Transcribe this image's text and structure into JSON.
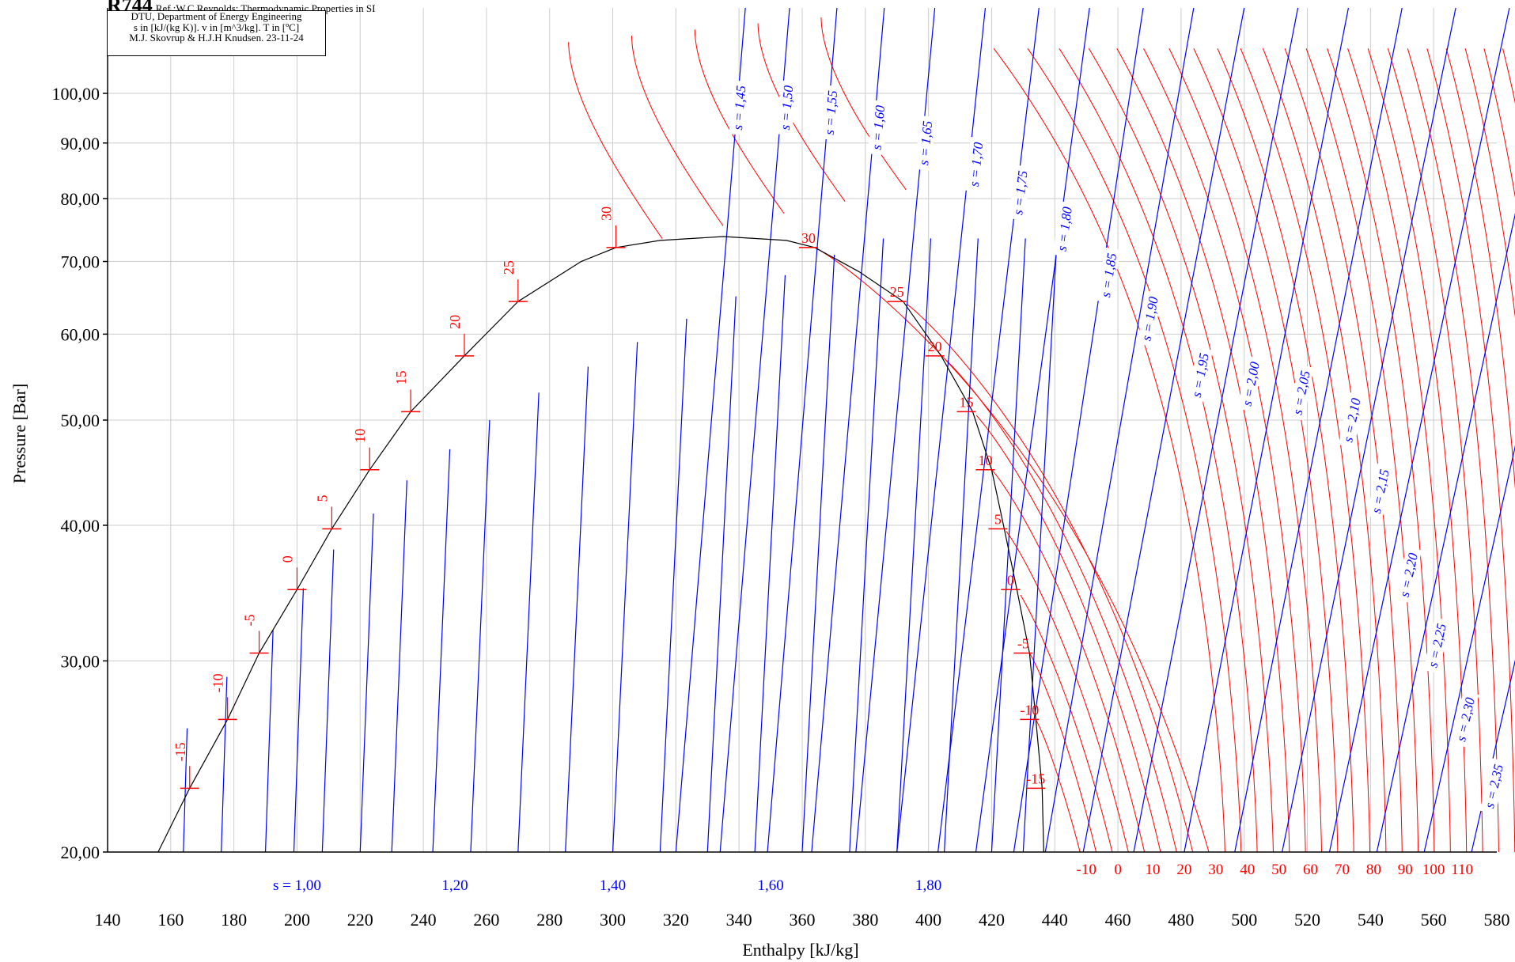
{
  "header": {
    "refrigerant": "R744",
    "reference": "Ref :W.C.Reynolds: Thermodynamic Properties in SI"
  },
  "info_box": {
    "line1": "DTU, Department of Energy Engineering",
    "line2": "s in [kJ/(kg K)]. v in [m^3/kg]. T in [ºC]",
    "line3": "M.J. Skovrup & H.J.H Knudsen. 23-11-24"
  },
  "colors": {
    "isotherm": "#ff0000",
    "isentrope": "#0000ff",
    "saturation": "#000000",
    "grid": "#cccccc"
  },
  "chart_data": {
    "type": "line",
    "title": "",
    "xlabel": "Enthalpy [kJ/kg]",
    "ylabel": "Pressure [Bar]",
    "xlim": [
      140,
      580
    ],
    "ylim": [
      20,
      100
    ],
    "yscale": "log",
    "grid": true,
    "x_ticks": [
      "140",
      "160",
      "180",
      "200",
      "220",
      "240",
      "260",
      "280",
      "300",
      "320",
      "340",
      "360",
      "380",
      "400",
      "420",
      "440",
      "460",
      "480",
      "500",
      "520",
      "540",
      "560",
      "580"
    ],
    "y_ticks": [
      {
        "v": 20,
        "label": "20,00"
      },
      {
        "v": 30,
        "label": "30,00"
      },
      {
        "v": 40,
        "label": "40,00"
      },
      {
        "v": 50,
        "label": "50,00"
      },
      {
        "v": 60,
        "label": "60,00"
      },
      {
        "v": 70,
        "label": "70,00"
      },
      {
        "v": 80,
        "label": "80,00"
      },
      {
        "v": 90,
        "label": "90,00"
      },
      {
        "v": 100,
        "label": "100,00"
      }
    ],
    "entropy_axis_labels": [
      {
        "h": 200,
        "label": "s = 1,00"
      },
      {
        "h": 250,
        "label": "1,20"
      },
      {
        "h": 300,
        "label": "1,40"
      },
      {
        "h": 350,
        "label": "1,60"
      },
      {
        "h": 400,
        "label": "1,80"
      }
    ],
    "superheat_temp_labels": [
      {
        "h": 450,
        "label": "-10"
      },
      {
        "h": 460,
        "label": "0"
      },
      {
        "h": 471,
        "label": "10"
      },
      {
        "h": 481,
        "label": "20"
      },
      {
        "h": 491,
        "label": "30"
      },
      {
        "h": 501,
        "label": "40"
      },
      {
        "h": 511,
        "label": "50"
      },
      {
        "h": 521,
        "label": "60"
      },
      {
        "h": 531,
        "label": "70"
      },
      {
        "h": 541,
        "label": "80"
      },
      {
        "h": 551,
        "label": "90"
      },
      {
        "h": 560,
        "label": "100"
      },
      {
        "h": 569,
        "label": "110"
      }
    ],
    "saturated_liquid": [
      {
        "T": -15,
        "p": 22.9,
        "h": 166
      },
      {
        "T": -10,
        "p": 26.5,
        "h": 178
      },
      {
        "T": -5,
        "p": 30.5,
        "h": 188
      },
      {
        "T": 0,
        "p": 34.9,
        "h": 200
      },
      {
        "T": 5,
        "p": 39.7,
        "h": 211
      },
      {
        "T": 10,
        "p": 45.0,
        "h": 223
      },
      {
        "T": 15,
        "p": 50.9,
        "h": 236
      },
      {
        "T": 20,
        "p": 57.3,
        "h": 253
      },
      {
        "T": 25,
        "p": 64.3,
        "h": 270
      },
      {
        "T": 30,
        "p": 72.1,
        "h": 301
      }
    ],
    "saturated_vapor": [
      {
        "T": 30,
        "p": 72.1,
        "h": 364
      },
      {
        "T": 25,
        "p": 64.3,
        "h": 392
      },
      {
        "T": 20,
        "p": 57.3,
        "h": 404
      },
      {
        "T": 15,
        "p": 50.9,
        "h": 414
      },
      {
        "T": 10,
        "p": 45.0,
        "h": 420
      },
      {
        "T": 5,
        "p": 39.7,
        "h": 424
      },
      {
        "T": 0,
        "p": 34.9,
        "h": 428
      },
      {
        "T": -5,
        "p": 30.5,
        "h": 432
      },
      {
        "T": -10,
        "p": 26.5,
        "h": 434
      },
      {
        "T": -15,
        "p": 22.9,
        "h": 436
      }
    ],
    "saturation_dome": [
      {
        "h": 156,
        "p": 20.0
      },
      {
        "h": 166,
        "p": 22.9
      },
      {
        "h": 178,
        "p": 26.5
      },
      {
        "h": 188,
        "p": 30.5
      },
      {
        "h": 200,
        "p": 34.9
      },
      {
        "h": 211,
        "p": 39.7
      },
      {
        "h": 223,
        "p": 45.0
      },
      {
        "h": 236,
        "p": 50.9
      },
      {
        "h": 253,
        "p": 57.3
      },
      {
        "h": 270,
        "p": 64.3
      },
      {
        "h": 290,
        "p": 70.0
      },
      {
        "h": 301,
        "p": 72.1
      },
      {
        "h": 315,
        "p": 73.2
      },
      {
        "h": 335,
        "p": 73.8
      },
      {
        "h": 355,
        "p": 73.2
      },
      {
        "h": 364,
        "p": 72.1
      },
      {
        "h": 378,
        "p": 68.5
      },
      {
        "h": 392,
        "p": 64.3
      },
      {
        "h": 404,
        "p": 57.3
      },
      {
        "h": 414,
        "p": 50.9
      },
      {
        "h": 420,
        "p": 45.0
      },
      {
        "h": 424,
        "p": 39.7
      },
      {
        "h": 428,
        "p": 34.9
      },
      {
        "h": 432,
        "p": 30.5
      },
      {
        "h": 434,
        "p": 26.5
      },
      {
        "h": 436,
        "p": 22.9
      },
      {
        "h": 436.5,
        "p": 20.0
      }
    ],
    "isentropes": [
      {
        "label": "s = 1,45",
        "h_low": 320,
        "h_high": 342,
        "label_h": 340,
        "label_p": 97
      },
      {
        "label": "s = 1,50",
        "h_low": 334,
        "h_high": 356,
        "label_h": 355,
        "label_p": 97
      },
      {
        "label": "s = 1,55",
        "h_low": 349,
        "h_high": 371,
        "label_h": 369,
        "label_p": 96
      },
      {
        "label": "s = 1,60",
        "h_low": 363,
        "h_high": 386,
        "label_h": 384,
        "label_p": 93
      },
      {
        "label": "s = 1,65",
        "h_low": 377,
        "h_high": 402,
        "label_h": 399,
        "label_p": 90
      },
      {
        "label": "s = 1,70",
        "h_low": 390,
        "h_high": 418,
        "label_h": 415,
        "label_p": 86
      },
      {
        "label": "s = 1,75",
        "h_low": 403,
        "h_high": 435,
        "label_h": 429,
        "label_p": 81
      },
      {
        "label": "s = 1,80",
        "h_low": 415,
        "h_high": 451,
        "label_h": 443,
        "label_p": 75
      },
      {
        "label": "s = 1,85",
        "h_low": 427,
        "h_high": 468,
        "label_h": 457,
        "label_p": 68
      },
      {
        "label": "s = 1,90",
        "h_low": 437,
        "h_high": 484,
        "label_h": 470,
        "label_p": 62
      },
      {
        "label": "s = 1,95",
        "h_low": 449,
        "h_high": 500,
        "label_h": 486,
        "label_p": 55
      },
      {
        "label": "s = 2,00",
        "h_low": 465,
        "h_high": 517,
        "label_h": 502,
        "label_p": 54
      },
      {
        "label": "s = 2,05",
        "h_low": 481,
        "h_high": 533,
        "label_h": 518,
        "label_p": 53
      },
      {
        "label": "s = 2,10",
        "h_low": 497,
        "h_high": 550,
        "label_h": 534,
        "label_p": 50
      },
      {
        "label": "s = 2,15",
        "h_low": 512,
        "h_high": 567,
        "label_h": 543,
        "label_p": 43
      },
      {
        "label": "s = 2,20",
        "h_low": 527,
        "h_high": 584,
        "label_h": 552,
        "label_p": 36
      },
      {
        "label": "s = 2,25",
        "h_low": 542,
        "h_high": 600,
        "label_h": 561,
        "label_p": 31
      },
      {
        "label": "s = 2,30",
        "h_low": 557,
        "h_high": 617,
        "label_h": 570,
        "label_p": 26.5
      },
      {
        "label": "s = 2,35",
        "h_low": 572,
        "h_high": 633,
        "label_h": 579,
        "label_p": 23
      }
    ]
  }
}
